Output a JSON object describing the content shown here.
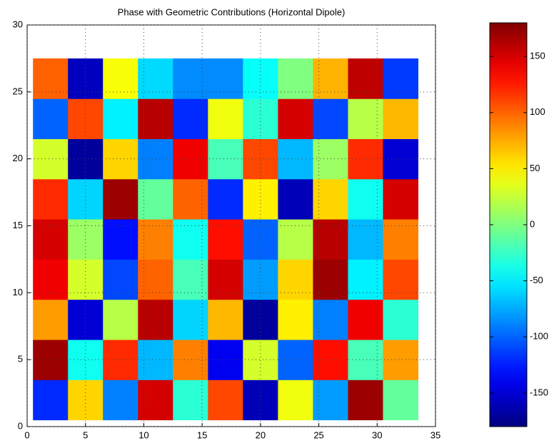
{
  "chart_data": {
    "type": "heatmap",
    "title": "Phase with Geometric Contributions (Horizontal Dipole)",
    "x": [
      2,
      5,
      8,
      11,
      14,
      17,
      20,
      23,
      26,
      29,
      32
    ],
    "y": [
      2,
      5,
      8,
      11,
      14,
      17,
      20,
      23,
      26
    ],
    "z": [
      [
        -120,
        60,
        -90,
        150,
        -30,
        110,
        -160,
        40,
        -80,
        170,
        -10
      ],
      [
        170,
        -40,
        120,
        -70,
        90,
        -140,
        30,
        -100,
        130,
        -20,
        80
      ],
      [
        80,
        -150,
        20,
        160,
        -60,
        70,
        -170,
        50,
        -90,
        140,
        -30
      ],
      [
        140,
        30,
        -110,
        100,
        -20,
        150,
        -80,
        60,
        170,
        -50,
        110
      ],
      [
        150,
        10,
        -130,
        90,
        -40,
        130,
        -100,
        20,
        160,
        -70,
        90
      ],
      [
        120,
        -60,
        170,
        -10,
        100,
        -120,
        50,
        -160,
        60,
        -40,
        150
      ],
      [
        30,
        -170,
        60,
        -90,
        140,
        -20,
        110,
        -70,
        10,
        120,
        -150
      ],
      [
        -100,
        110,
        -50,
        160,
        -120,
        40,
        -30,
        150,
        -110,
        20,
        70
      ],
      [
        101,
        -158,
        43,
        -58,
        -86,
        -86,
        -43,
        0,
        72,
        158,
        -115
      ]
    ],
    "colormap": "jet",
    "zlim": [
      -180,
      180
    ],
    "zticks": [
      -150,
      -100,
      -50,
      0,
      50,
      100,
      150
    ],
    "xlim": [
      0,
      35
    ],
    "xticks": [
      0,
      5,
      10,
      15,
      20,
      25,
      30,
      35
    ],
    "ylim": [
      0,
      30
    ],
    "yticks": [
      0,
      5,
      10,
      15,
      20,
      25,
      30
    ],
    "grid": true
  }
}
